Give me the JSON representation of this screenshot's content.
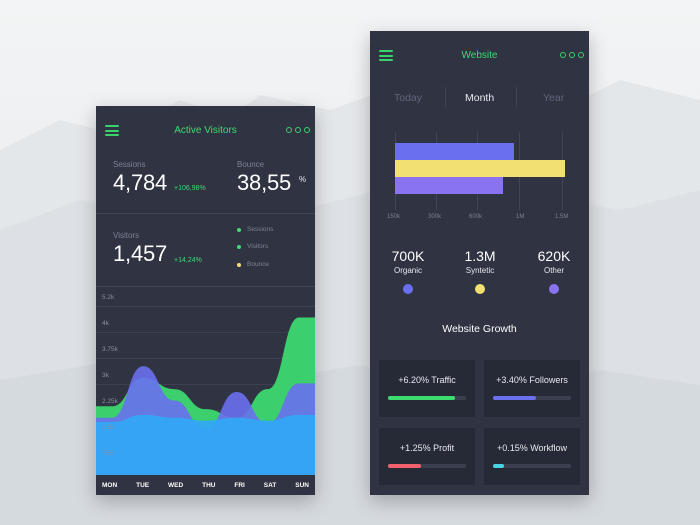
{
  "colors": {
    "accent_green": "#3ddc71",
    "blue": "#33a6f5",
    "violet": "#6a6ff0",
    "yellow": "#f2e070",
    "panel": "#2f3342",
    "card": "#262a36",
    "red": "#f2616b",
    "cyan": "#45d6e6",
    "purple": "#8a73f0"
  },
  "active_visitors": {
    "title": "Active Visitors",
    "menu_icon": "hamburger-icon",
    "more_icon": "more-dots-icon",
    "sessions": {
      "label": "Sessions",
      "value": "4,784",
      "delta": "+106,98%"
    },
    "bounce": {
      "label": "Bounce",
      "value": "38,55",
      "unit": "%"
    },
    "visitors": {
      "label": "Visitors",
      "value": "1,457",
      "delta": "+14,24%"
    },
    "legend": [
      {
        "label": "Sessions",
        "color": "#3ddc71"
      },
      {
        "label": "Visitors",
        "color": "#3ddc71"
      },
      {
        "label": "Bounce",
        "color": "#f2e070"
      }
    ],
    "y_ticks": [
      "5.2k",
      "4k",
      "3.75k",
      "3k",
      "2.25k",
      "1.5k",
      "750"
    ],
    "days": [
      "MON",
      "TUE",
      "WED",
      "THU",
      "FRI",
      "SAT",
      "SUN"
    ]
  },
  "website": {
    "title": "Website",
    "menu_icon": "hamburger-icon",
    "more_icon": "more-dots-icon",
    "tabs": [
      {
        "label": "Today",
        "active": false
      },
      {
        "label": "Month",
        "active": true
      },
      {
        "label": "Year",
        "active": false
      }
    ],
    "x_ticks": [
      "150k",
      "300k",
      "600k",
      "1M",
      "1.5M"
    ],
    "metrics": [
      {
        "value": "700K",
        "label": "Organic",
        "color": "#6a6ff0"
      },
      {
        "value": "1.3M",
        "label": "Syntetic",
        "color": "#f2e070"
      },
      {
        "value": "620K",
        "label": "Other",
        "color": "#8a73f0"
      }
    ],
    "growth_title": "Website Growth",
    "growth": [
      {
        "text": "+6.20% Traffic",
        "progress": 0.86,
        "color": "#3ddc71"
      },
      {
        "text": "+3.40% Followers",
        "progress": 0.55,
        "color": "#6a6ff0"
      },
      {
        "text": "+1.25% Profit",
        "progress": 0.42,
        "color": "#f2616b"
      },
      {
        "text": "+0.15% Workflow",
        "progress": 0.14,
        "color": "#45d6e6"
      }
    ]
  },
  "chart_data": [
    {
      "type": "area",
      "title": "",
      "categories": [
        "MON",
        "TUE",
        "WED",
        "THU",
        "FRI",
        "SAT",
        "SUN"
      ],
      "ylim": [
        0,
        5200
      ],
      "y_ticks": [
        "5.2k",
        "4k",
        "3.75k",
        "3k",
        "2.25k",
        "1.5k",
        "750"
      ],
      "series": [
        {
          "color": "#3ddc71",
          "values": [
            1700,
            2700,
            2300,
            1600,
            1300,
            2300,
            4800
          ]
        },
        {
          "color": "#6a6ff0",
          "values": [
            1300,
            3100,
            1900,
            900,
            2200,
            1100,
            2500
          ]
        },
        {
          "color": "#33a6f5",
          "values": [
            1150,
            1400,
            1300,
            1200,
            1300,
            1200,
            1400
          ]
        }
      ],
      "grid": true
    },
    {
      "type": "bar",
      "orientation": "horizontal",
      "x_ticks": [
        "150k",
        "300k",
        "600k",
        "1M",
        "1.5M"
      ],
      "series": [
        {
          "name": "Organic",
          "value": "700K",
          "color": "#6a6ff0"
        },
        {
          "name": "Syntetic",
          "value": "1.3M",
          "color": "#f2e070"
        },
        {
          "name": "Other",
          "value": "620K",
          "color": "#8a73f0"
        }
      ],
      "grid": true
    }
  ]
}
